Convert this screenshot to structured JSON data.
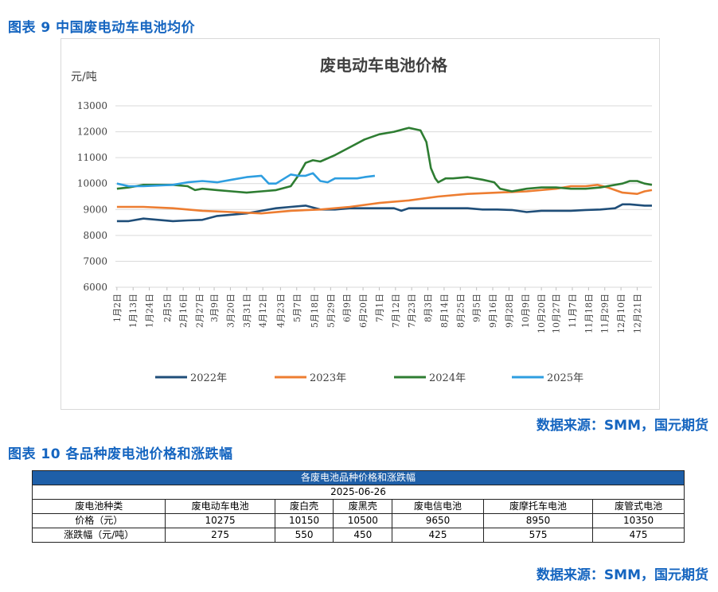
{
  "figure9_title": "图表 9 中国废电动车电池均价",
  "figure10_title": "图表 10 各品种废电池价格和涨跌幅",
  "source1": "数据来源：SMM，国元期货",
  "source2": "数据来源：SMM，国元期货",
  "colors": {
    "y2022": "#1f4e79",
    "y2023": "#ed7d31",
    "y2024": "#2e7d32",
    "y2025": "#2e9ee0",
    "heading": "#1565c0",
    "table_header": "#1e5fa8"
  },
  "chart_data": {
    "type": "line",
    "title": "废电动车电池价格",
    "ylabel": "元/吨",
    "ylim": [
      6000,
      13000
    ],
    "yticks": [
      6000,
      7000,
      8000,
      9000,
      10000,
      11000,
      12000,
      13000
    ],
    "grid": true,
    "legend_position": "bottom",
    "xlim": [
      1,
      365
    ],
    "xtick_days": [
      2,
      13,
      24,
      36,
      47,
      58,
      68,
      79,
      90,
      101,
      113,
      124,
      136,
      147,
      158,
      169,
      180,
      191,
      202,
      213,
      224,
      235,
      246,
      257,
      268,
      279,
      290,
      300,
      311,
      322,
      333,
      344,
      355
    ],
    "xtick_labels": [
      "1月2日",
      "1月13日",
      "1月24日",
      "2月5日",
      "2月16日",
      "2月27日",
      "3月9日",
      "3月20日",
      "3月31日",
      "4月12日",
      "4月23日",
      "5月7日",
      "5月18日",
      "5月29日",
      "6月9日",
      "6月20日",
      "7月1日",
      "7月12日",
      "7月23日",
      "8月3日",
      "8月14日",
      "8月25日",
      "9月5日",
      "9月16日",
      "9月28日",
      "10月9日",
      "10月20日",
      "10月27日",
      "11月7日",
      "11月18日",
      "11月29日",
      "12月10日",
      "12月21日"
    ],
    "series": [
      {
        "name": "2022年",
        "x": [
          2,
          10,
          20,
          30,
          40,
          50,
          60,
          70,
          80,
          90,
          100,
          110,
          120,
          130,
          140,
          150,
          160,
          170,
          180,
          186,
          190,
          195,
          200,
          210,
          220,
          230,
          240,
          250,
          260,
          270,
          280,
          290,
          300,
          310,
          320,
          330,
          340,
          345,
          350,
          360,
          365
        ],
        "values": [
          8550,
          8550,
          8650,
          8600,
          8550,
          8580,
          8600,
          8750,
          8800,
          8850,
          8950,
          9050,
          9100,
          9150,
          9000,
          9000,
          9050,
          9050,
          9050,
          9050,
          9050,
          8950,
          9050,
          9050,
          9050,
          9050,
          9050,
          9000,
          9000,
          8980,
          8900,
          8950,
          8950,
          8950,
          8980,
          9000,
          9050,
          9200,
          9200,
          9150,
          9150
        ]
      },
      {
        "name": "2023年",
        "x": [
          2,
          20,
          40,
          60,
          80,
          100,
          120,
          140,
          160,
          180,
          200,
          220,
          240,
          260,
          280,
          300,
          310,
          320,
          328,
          335,
          345,
          355,
          360,
          365
        ],
        "values": [
          9100,
          9100,
          9050,
          8950,
          8900,
          8850,
          8950,
          9000,
          9100,
          9250,
          9350,
          9500,
          9600,
          9650,
          9700,
          9800,
          9900,
          9900,
          9950,
          9850,
          9650,
          9600,
          9700,
          9750
        ]
      },
      {
        "name": "2024年",
        "x": [
          2,
          10,
          20,
          30,
          40,
          50,
          55,
          60,
          70,
          80,
          90,
          100,
          110,
          120,
          125,
          128,
          130,
          135,
          140,
          150,
          160,
          170,
          180,
          190,
          200,
          208,
          212,
          215,
          218,
          220,
          225,
          230,
          240,
          250,
          258,
          262,
          270,
          280,
          290,
          300,
          310,
          320,
          330,
          340,
          345,
          350,
          355,
          360,
          365
        ],
        "values": [
          9800,
          9850,
          9950,
          9950,
          9950,
          9900,
          9750,
          9800,
          9750,
          9700,
          9650,
          9700,
          9750,
          9900,
          10300,
          10600,
          10800,
          10900,
          10850,
          11100,
          11400,
          11700,
          11900,
          12000,
          12150,
          12050,
          11600,
          10600,
          10200,
          10050,
          10200,
          10200,
          10250,
          10150,
          10050,
          9800,
          9700,
          9800,
          9850,
          9850,
          9800,
          9800,
          9850,
          9950,
          10000,
          10100,
          10100,
          10000,
          9950
        ]
      },
      {
        "name": "2025年",
        "x": [
          2,
          10,
          20,
          40,
          50,
          60,
          70,
          80,
          90,
          100,
          105,
          110,
          120,
          125,
          130,
          135,
          140,
          145,
          150,
          160,
          165,
          170,
          177
        ],
        "values": [
          10000,
          9900,
          9900,
          9950,
          10050,
          10100,
          10050,
          10150,
          10250,
          10300,
          10000,
          10000,
          10350,
          10300,
          10300,
          10400,
          10100,
          10050,
          10200,
          10200,
          10200,
          10250,
          10300
        ]
      }
    ]
  },
  "table": {
    "title": "各废电池品种价格和涨跌幅",
    "date": "2025-06-26",
    "headers": [
      "废电池种类",
      "废电动车电池",
      "废白壳",
      "废黑壳",
      "废电信电池",
      "废摩托车电池",
      "废管式电池"
    ],
    "price_row": [
      "价格（元）",
      "10275",
      "10150",
      "10500",
      "9650",
      "8950",
      "10350"
    ],
    "change_row": [
      "涨跌幅（元/吨）",
      "275",
      "550",
      "450",
      "425",
      "575",
      "475"
    ]
  }
}
